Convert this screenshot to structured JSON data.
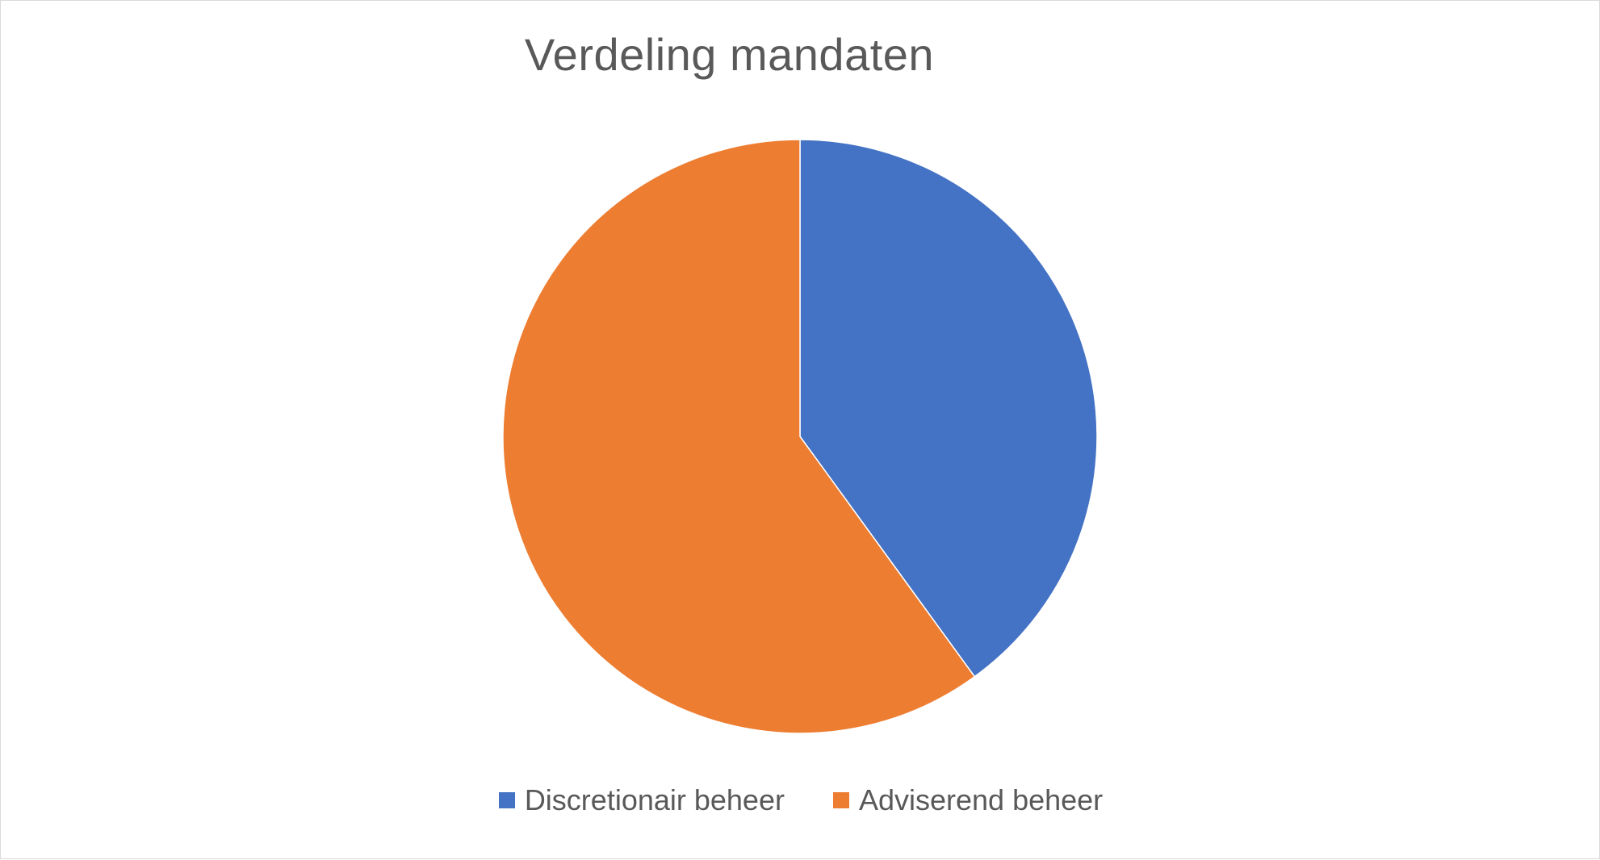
{
  "chart_data": {
    "type": "pie",
    "title": "Verdeling mandaten",
    "categories": [
      "Discretionair beheer",
      "Adviserend beheer"
    ],
    "values": [
      40,
      60
    ],
    "colors": [
      "#4472c4",
      "#ed7d31"
    ],
    "legend_position": "bottom",
    "start_angle_deg": 0,
    "direction": "clockwise"
  }
}
